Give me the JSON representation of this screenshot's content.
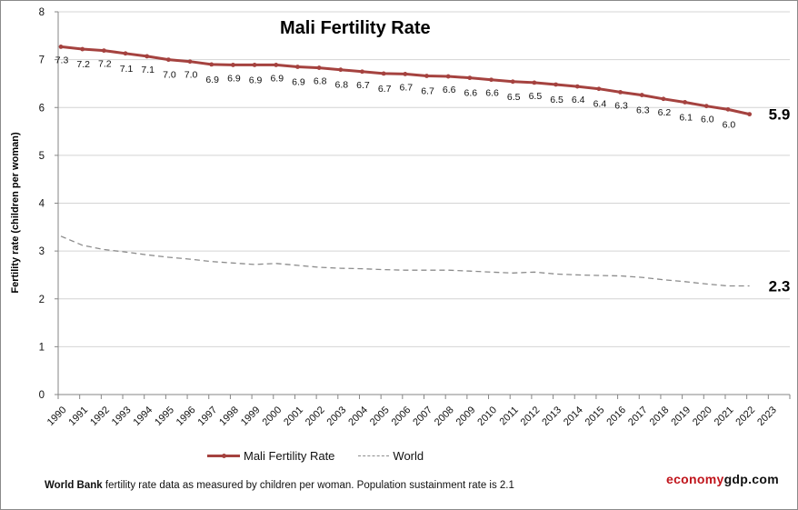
{
  "chart_data": {
    "type": "line",
    "title": "Mali Fertility Rate",
    "xlabel": "",
    "ylabel": "Fertility rate (children per woman)",
    "ylim": [
      0,
      8
    ],
    "yticks": [
      "0",
      "1",
      "2",
      "3",
      "4",
      "5",
      "6",
      "7",
      "8"
    ],
    "grid": "horizontal",
    "legend_position": "bottom",
    "categories": [
      "1990",
      "1991",
      "1992",
      "1993",
      "1994",
      "1995",
      "1996",
      "1997",
      "1998",
      "1999",
      "2000",
      "2001",
      "2002",
      "2003",
      "2004",
      "2005",
      "2006",
      "2007",
      "2008",
      "2009",
      "2010",
      "2011",
      "2012",
      "2013",
      "2014",
      "2015",
      "2016",
      "2017",
      "2018",
      "2019",
      "2020",
      "2021",
      "2022",
      "2023"
    ],
    "series": [
      {
        "name": "Mali Fertility Rate",
        "color": "#a5423f",
        "style": "solid-with-markers",
        "values": [
          7.27,
          7.22,
          7.19,
          7.13,
          7.07,
          7.0,
          6.96,
          6.9,
          6.89,
          6.89,
          6.89,
          6.85,
          6.83,
          6.79,
          6.75,
          6.71,
          6.7,
          6.66,
          6.65,
          6.62,
          6.58,
          6.54,
          6.52,
          6.48,
          6.44,
          6.39,
          6.32,
          6.26,
          6.18,
          6.11,
          6.03,
          5.96,
          5.86,
          null
        ],
        "data_labels": [
          "7.3",
          "7.2",
          "7.2",
          "7.1",
          "7.1",
          "7.0",
          "7.0",
          "6.9",
          "6.9",
          "6.9",
          "6.9",
          "6.9",
          "6.8",
          "6.8",
          "6.7",
          "6.7",
          "6.7",
          "6.7",
          "6.6",
          "6.6",
          "6.6",
          "6.5",
          "6.5",
          "6.5",
          "6.4",
          "6.4",
          "6.3",
          "6.3",
          "6.2",
          "6.1",
          "6.0",
          "6.0"
        ],
        "end_label": "5.9"
      },
      {
        "name": "World",
        "color": "#8c8c8c",
        "style": "dashed",
        "values": [
          3.31,
          3.12,
          3.03,
          2.98,
          2.92,
          2.87,
          2.83,
          2.78,
          2.75,
          2.72,
          2.74,
          2.7,
          2.66,
          2.64,
          2.63,
          2.61,
          2.6,
          2.6,
          2.6,
          2.58,
          2.56,
          2.54,
          2.56,
          2.52,
          2.5,
          2.49,
          2.48,
          2.45,
          2.4,
          2.36,
          2.31,
          2.27,
          2.27,
          null
        ],
        "end_label": "2.3"
      }
    ]
  },
  "footer": {
    "source_bold": "World Bank",
    "note": " fertility rate data as measured by children per woman.  Population sustainment rate is 2.1"
  },
  "brand": {
    "part1": "economy",
    "part2": "gdp.com",
    "part1_color": "#c0141b",
    "part2_color": "#111111"
  }
}
